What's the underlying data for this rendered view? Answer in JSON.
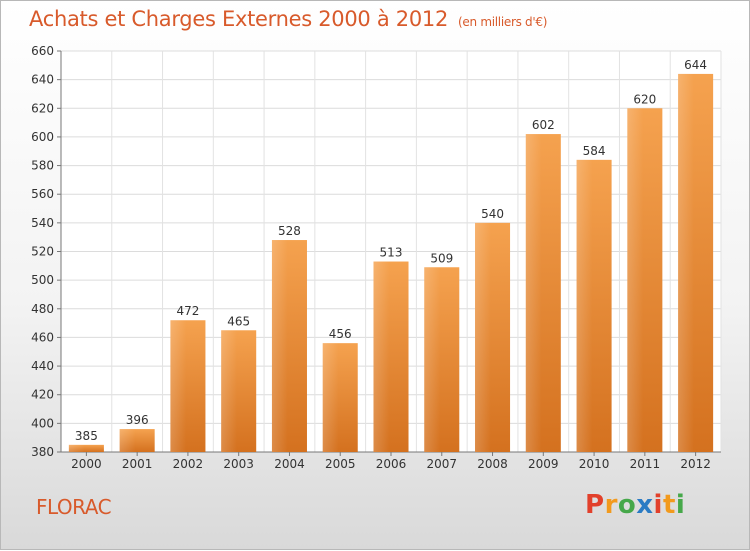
{
  "header": {
    "title": "Achats et Charges Externes 2000 à 2012",
    "unit": "(en milliers d'€)"
  },
  "footer": {
    "commune": "FLORAC",
    "logo_letters": [
      "P",
      "r",
      "o",
      "x",
      "i",
      "t",
      "i"
    ],
    "logo_colors": [
      "#e2402b",
      "#f29a1d",
      "#46a84a",
      "#2a7bc4",
      "#e2402b",
      "#f29a1d",
      "#46a84a"
    ]
  },
  "chart_data": {
    "type": "bar",
    "categories": [
      "2000",
      "2001",
      "2002",
      "2003",
      "2004",
      "2005",
      "2006",
      "2007",
      "2008",
      "2009",
      "2010",
      "2011",
      "2012"
    ],
    "values": [
      385,
      396,
      472,
      465,
      528,
      456,
      513,
      509,
      540,
      602,
      584,
      620,
      644
    ],
    "title": "Achats et Charges Externes 2000 à 2012",
    "ylim": [
      380,
      660
    ],
    "yticks": [
      380,
      400,
      420,
      440,
      460,
      480,
      500,
      520,
      540,
      560,
      580,
      600,
      620,
      640,
      660
    ],
    "grid": true,
    "bar_color_top": "#f5a24f",
    "bar_color_bottom": "#d4711f"
  }
}
